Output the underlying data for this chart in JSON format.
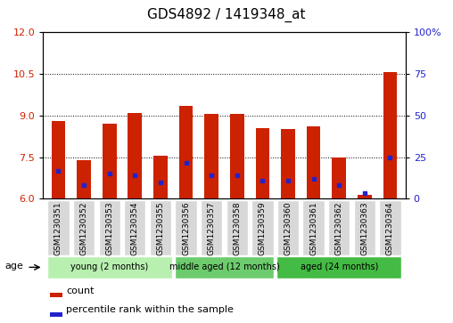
{
  "title": "GDS4892 / 1419348_at",
  "samples": [
    "GSM1230351",
    "GSM1230352",
    "GSM1230353",
    "GSM1230354",
    "GSM1230355",
    "GSM1230356",
    "GSM1230357",
    "GSM1230358",
    "GSM1230359",
    "GSM1230360",
    "GSM1230361",
    "GSM1230362",
    "GSM1230363",
    "GSM1230364"
  ],
  "red_values": [
    8.8,
    7.4,
    8.7,
    9.1,
    7.55,
    9.35,
    9.05,
    9.05,
    8.55,
    8.5,
    8.6,
    7.5,
    6.15,
    10.55
  ],
  "blue_values": [
    7.0,
    6.5,
    6.9,
    6.85,
    6.6,
    7.3,
    6.85,
    6.85,
    6.65,
    6.65,
    6.7,
    6.5,
    6.2,
    7.5
  ],
  "ylim_left": [
    6,
    12
  ],
  "ylim_right": [
    0,
    100
  ],
  "yticks_left": [
    6,
    7.5,
    9,
    10.5,
    12
  ],
  "yticks_right": [
    0,
    25,
    50,
    75,
    100
  ],
  "ytick_labels_right": [
    "0",
    "25",
    "50",
    "75",
    "100%"
  ],
  "groups": [
    {
      "label": "young (2 months)",
      "start": 0,
      "end": 5
    },
    {
      "label": "middle aged (12 months)",
      "start": 5,
      "end": 9
    },
    {
      "label": "aged (24 months)",
      "start": 9,
      "end": 14
    }
  ],
  "group_colors": [
    "#b8f0b0",
    "#6dcc6d",
    "#44bb44"
  ],
  "bar_color": "#CC2200",
  "dot_color": "#2222CC",
  "bar_width": 0.55,
  "title_fontsize": 11,
  "tick_fontsize": 6.5,
  "ytick_fontsize": 8,
  "axis_label_color_left": "#CC2200",
  "axis_label_color_right": "#2222CC",
  "background_color": "#ffffff",
  "tickbox_color": "#d8d8d8"
}
